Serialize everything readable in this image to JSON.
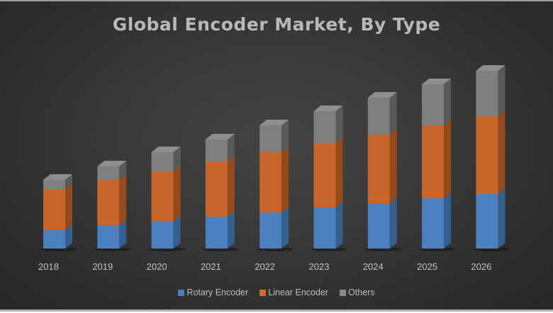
{
  "title": "Global Encoder Market, By Type",
  "colors": {
    "rotary_front": "#4a80bd",
    "rotary_side": "#355f8c",
    "rotary_top": "#5a8cc4",
    "linear_front": "#c8652b",
    "linear_side": "#954a1d",
    "linear_top": "#d07840",
    "others_front": "#7f7f7f",
    "others_side": "#595959",
    "others_top": "#8e8e8e"
  },
  "legend": [
    {
      "label": "Rotary Encoder",
      "color": "#4a80bd"
    },
    {
      "label": "Linear Encoder",
      "color": "#d0692c"
    },
    {
      "label": "Others",
      "color": "#8a8a8a"
    }
  ],
  "chart_data": {
    "type": "bar",
    "stacked": true,
    "style": "3d-column",
    "title": "Global Encoder Market, By Type",
    "xlabel": "",
    "ylabel": "",
    "categories": [
      "2018",
      "2019",
      "2020",
      "2021",
      "2022",
      "2023",
      "2024",
      "2025",
      "2026"
    ],
    "series": [
      {
        "name": "Rotary Encoder",
        "values": [
          26,
          32,
          39,
          45,
          51,
          58,
          64,
          71,
          77
        ]
      },
      {
        "name": "Linear Encoder",
        "values": [
          58,
          65,
          70,
          78,
          85,
          91,
          97,
          103,
          110
        ]
      },
      {
        "name": "Others",
        "values": [
          13,
          19,
          27,
          31,
          38,
          45,
          52,
          58,
          64
        ]
      }
    ],
    "value_note": "No y-axis shown; values are relative estimates read from bar heights (px)",
    "grid": false,
    "legend_position": "bottom"
  }
}
